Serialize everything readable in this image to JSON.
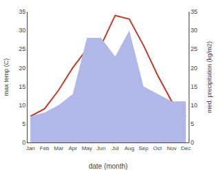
{
  "chart_data": {
    "type": "line",
    "xlabel": "date (month)",
    "ylabel": "max temp (C)",
    "y2label": "med. precipitation (kg/m2)",
    "categories": [
      "Jan",
      "Feb",
      "Mar",
      "Apr",
      "May",
      "Jun",
      "Jul",
      "Aug",
      "Sep",
      "Oct",
      "Nov",
      "Dec"
    ],
    "series": [
      {
        "type": "area",
        "axis": "y2",
        "color": "#b0b8e8",
        "values": [
          7,
          8,
          10,
          13,
          28,
          28,
          23,
          30,
          15,
          13,
          11,
          11
        ]
      },
      {
        "type": "line",
        "color": "#c0392b",
        "values": [
          7,
          9,
          14,
          20,
          25,
          26,
          34,
          33,
          26,
          18,
          11,
          7
        ]
      }
    ],
    "ylim": [
      0,
      35
    ],
    "yticks": [
      0,
      5,
      10,
      15,
      20,
      25,
      30,
      35
    ],
    "y2lim": [
      0,
      35
    ],
    "y2ticks": [
      0,
      5,
      10,
      15,
      20,
      25,
      30,
      35
    ],
    "grid": false
  }
}
